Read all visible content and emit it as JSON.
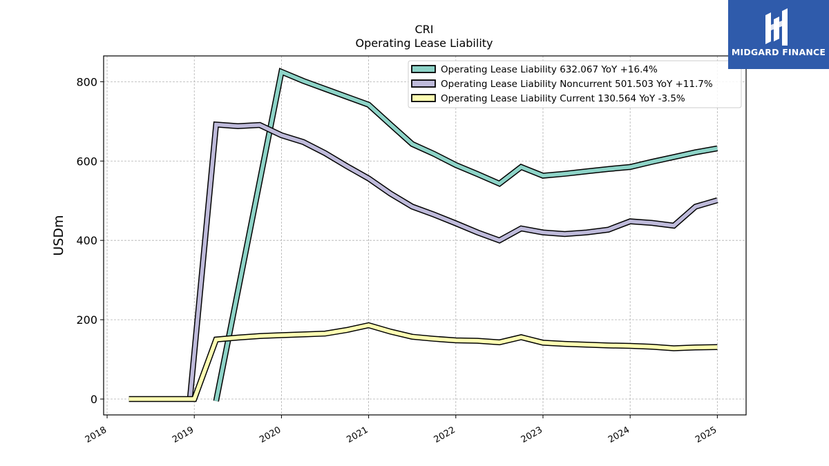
{
  "chart_data": {
    "type": "line",
    "title": "CRI",
    "subtitle": "Operating Lease Liability",
    "ylabel": "USDm",
    "xlabel": "",
    "ylim": [
      -40,
      865
    ],
    "xlim": [
      2017.96,
      2025.33
    ],
    "yticks": [
      0,
      200,
      400,
      600,
      800
    ],
    "xticks": [
      2018,
      2019,
      2020,
      2021,
      2022,
      2023,
      2024,
      2025
    ],
    "grid": true,
    "legend_position": "top-right",
    "series": [
      {
        "name": "Operating Lease Liability",
        "legend": "Operating Lease Liability  632.067 YoY +16.4%",
        "color": "#8dd3c7",
        "x": [
          2019.25,
          2020.0,
          2020.25,
          2020.5,
          2020.75,
          2021.0,
          2021.25,
          2021.5,
          2021.75,
          2022.0,
          2022.25,
          2022.5,
          2022.75,
          2023.0,
          2023.25,
          2023.5,
          2023.75,
          2024.0,
          2024.25,
          2024.5,
          2024.75,
          2025.0
        ],
        "y": [
          -5,
          825,
          802,
          782,
          762,
          742,
          692,
          643,
          618,
          590,
          567,
          543,
          585,
          563,
          568,
          574,
          580,
          585,
          598,
          610,
          622,
          632
        ]
      },
      {
        "name": "Operating Lease Liability Noncurrent",
        "legend": "Operating Lease Liability Noncurrent  501.503 YoY +11.7%",
        "color": "#bebada",
        "x": [
          2018.95,
          2019.25,
          2019.5,
          2019.75,
          2020.0,
          2020.25,
          2020.5,
          2020.75,
          2021.0,
          2021.25,
          2021.5,
          2021.75,
          2022.0,
          2022.25,
          2022.5,
          2022.75,
          2023.0,
          2023.25,
          2023.5,
          2023.75,
          2024.0,
          2024.25,
          2024.5,
          2024.75,
          2025.0
        ],
        "y": [
          0,
          692,
          688,
          691,
          665,
          648,
          620,
          587,
          556,
          518,
          485,
          465,
          443,
          420,
          400,
          430,
          420,
          416,
          420,
          427,
          448,
          444,
          437,
          485,
          501
        ]
      },
      {
        "name": "Operating Lease Liability Current",
        "legend": "Operating Lease Liability Current  130.564 YoY -3.5%",
        "color": "#ffffb3",
        "x": [
          2018.25,
          2019.0,
          2019.25,
          2019.5,
          2019.75,
          2020.0,
          2020.25,
          2020.5,
          2020.75,
          2021.0,
          2021.25,
          2021.5,
          2021.75,
          2022.0,
          2022.25,
          2022.5,
          2022.75,
          2023.0,
          2023.25,
          2023.5,
          2023.75,
          2024.0,
          2024.25,
          2024.5,
          2024.75,
          2025.0
        ],
        "y": [
          0,
          0,
          150,
          155,
          159,
          161,
          163,
          165,
          174,
          186,
          170,
          157,
          152,
          148,
          147,
          143,
          156,
          142,
          139,
          137,
          135,
          134,
          132,
          128,
          130,
          131
        ]
      }
    ]
  },
  "logo": {
    "text": "MIDGARD FINANCE",
    "color": "#2f5bab"
  }
}
